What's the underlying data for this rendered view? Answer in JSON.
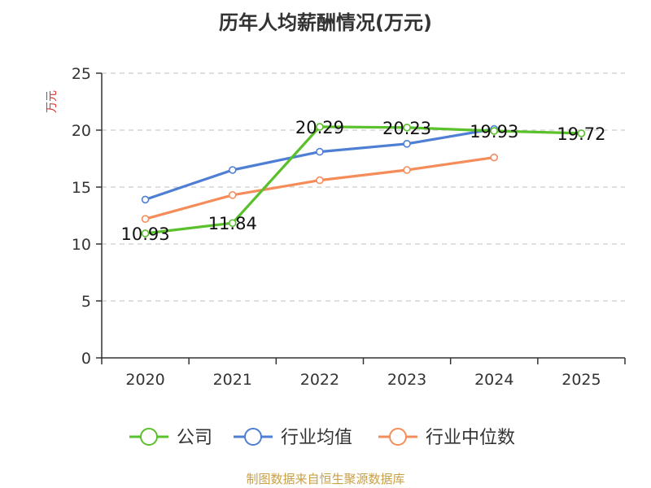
{
  "chart_data": {
    "type": "line",
    "title": "历年人均薪酬情况(万元)",
    "ylabel": "万元",
    "categories": [
      "2020",
      "2021",
      "2022",
      "2023",
      "2024",
      "2025"
    ],
    "ylim": [
      0,
      25
    ],
    "yticks": [
      0,
      5,
      10,
      15,
      20,
      25
    ],
    "grid": true,
    "legend_position": "bottom",
    "series": [
      {
        "name": "公司",
        "color": "#5ac02b",
        "values": [
          10.93,
          11.84,
          20.29,
          20.23,
          19.93,
          19.72
        ],
        "labels": [
          "10.93",
          "11.84",
          "20.29",
          "20.23",
          "19.93",
          "19.72"
        ]
      },
      {
        "name": "行业均值",
        "color": "#4e7fd4",
        "values": [
          13.9,
          16.5,
          18.1,
          18.8,
          20.1,
          null
        ]
      },
      {
        "name": "行业中位数",
        "color": "#f58d5a",
        "values": [
          12.2,
          14.3,
          15.6,
          16.5,
          17.6,
          null
        ]
      }
    ],
    "ylabel_color": "#d9342b",
    "source": "制图数据来自恒生聚源数据库"
  }
}
